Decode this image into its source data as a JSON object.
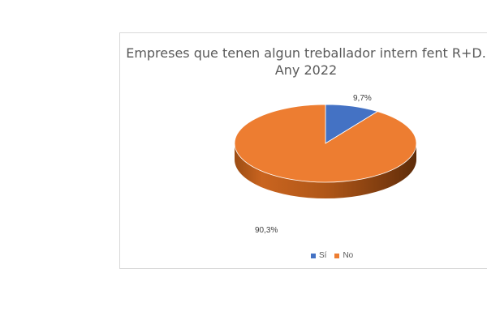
{
  "chart_data": {
    "type": "pie",
    "title_lines": [
      "Empreses que tenen algun treballador intern fent R+D.",
      "Any 2022"
    ],
    "slices": [
      {
        "label": "Sí",
        "value": 9.7,
        "display": "9,7%",
        "color": "#4472c4"
      },
      {
        "label": "No",
        "value": 90.3,
        "display": "90,3%",
        "color": "#ed7d31"
      }
    ],
    "style": "3d",
    "legend_position": "bottom"
  }
}
